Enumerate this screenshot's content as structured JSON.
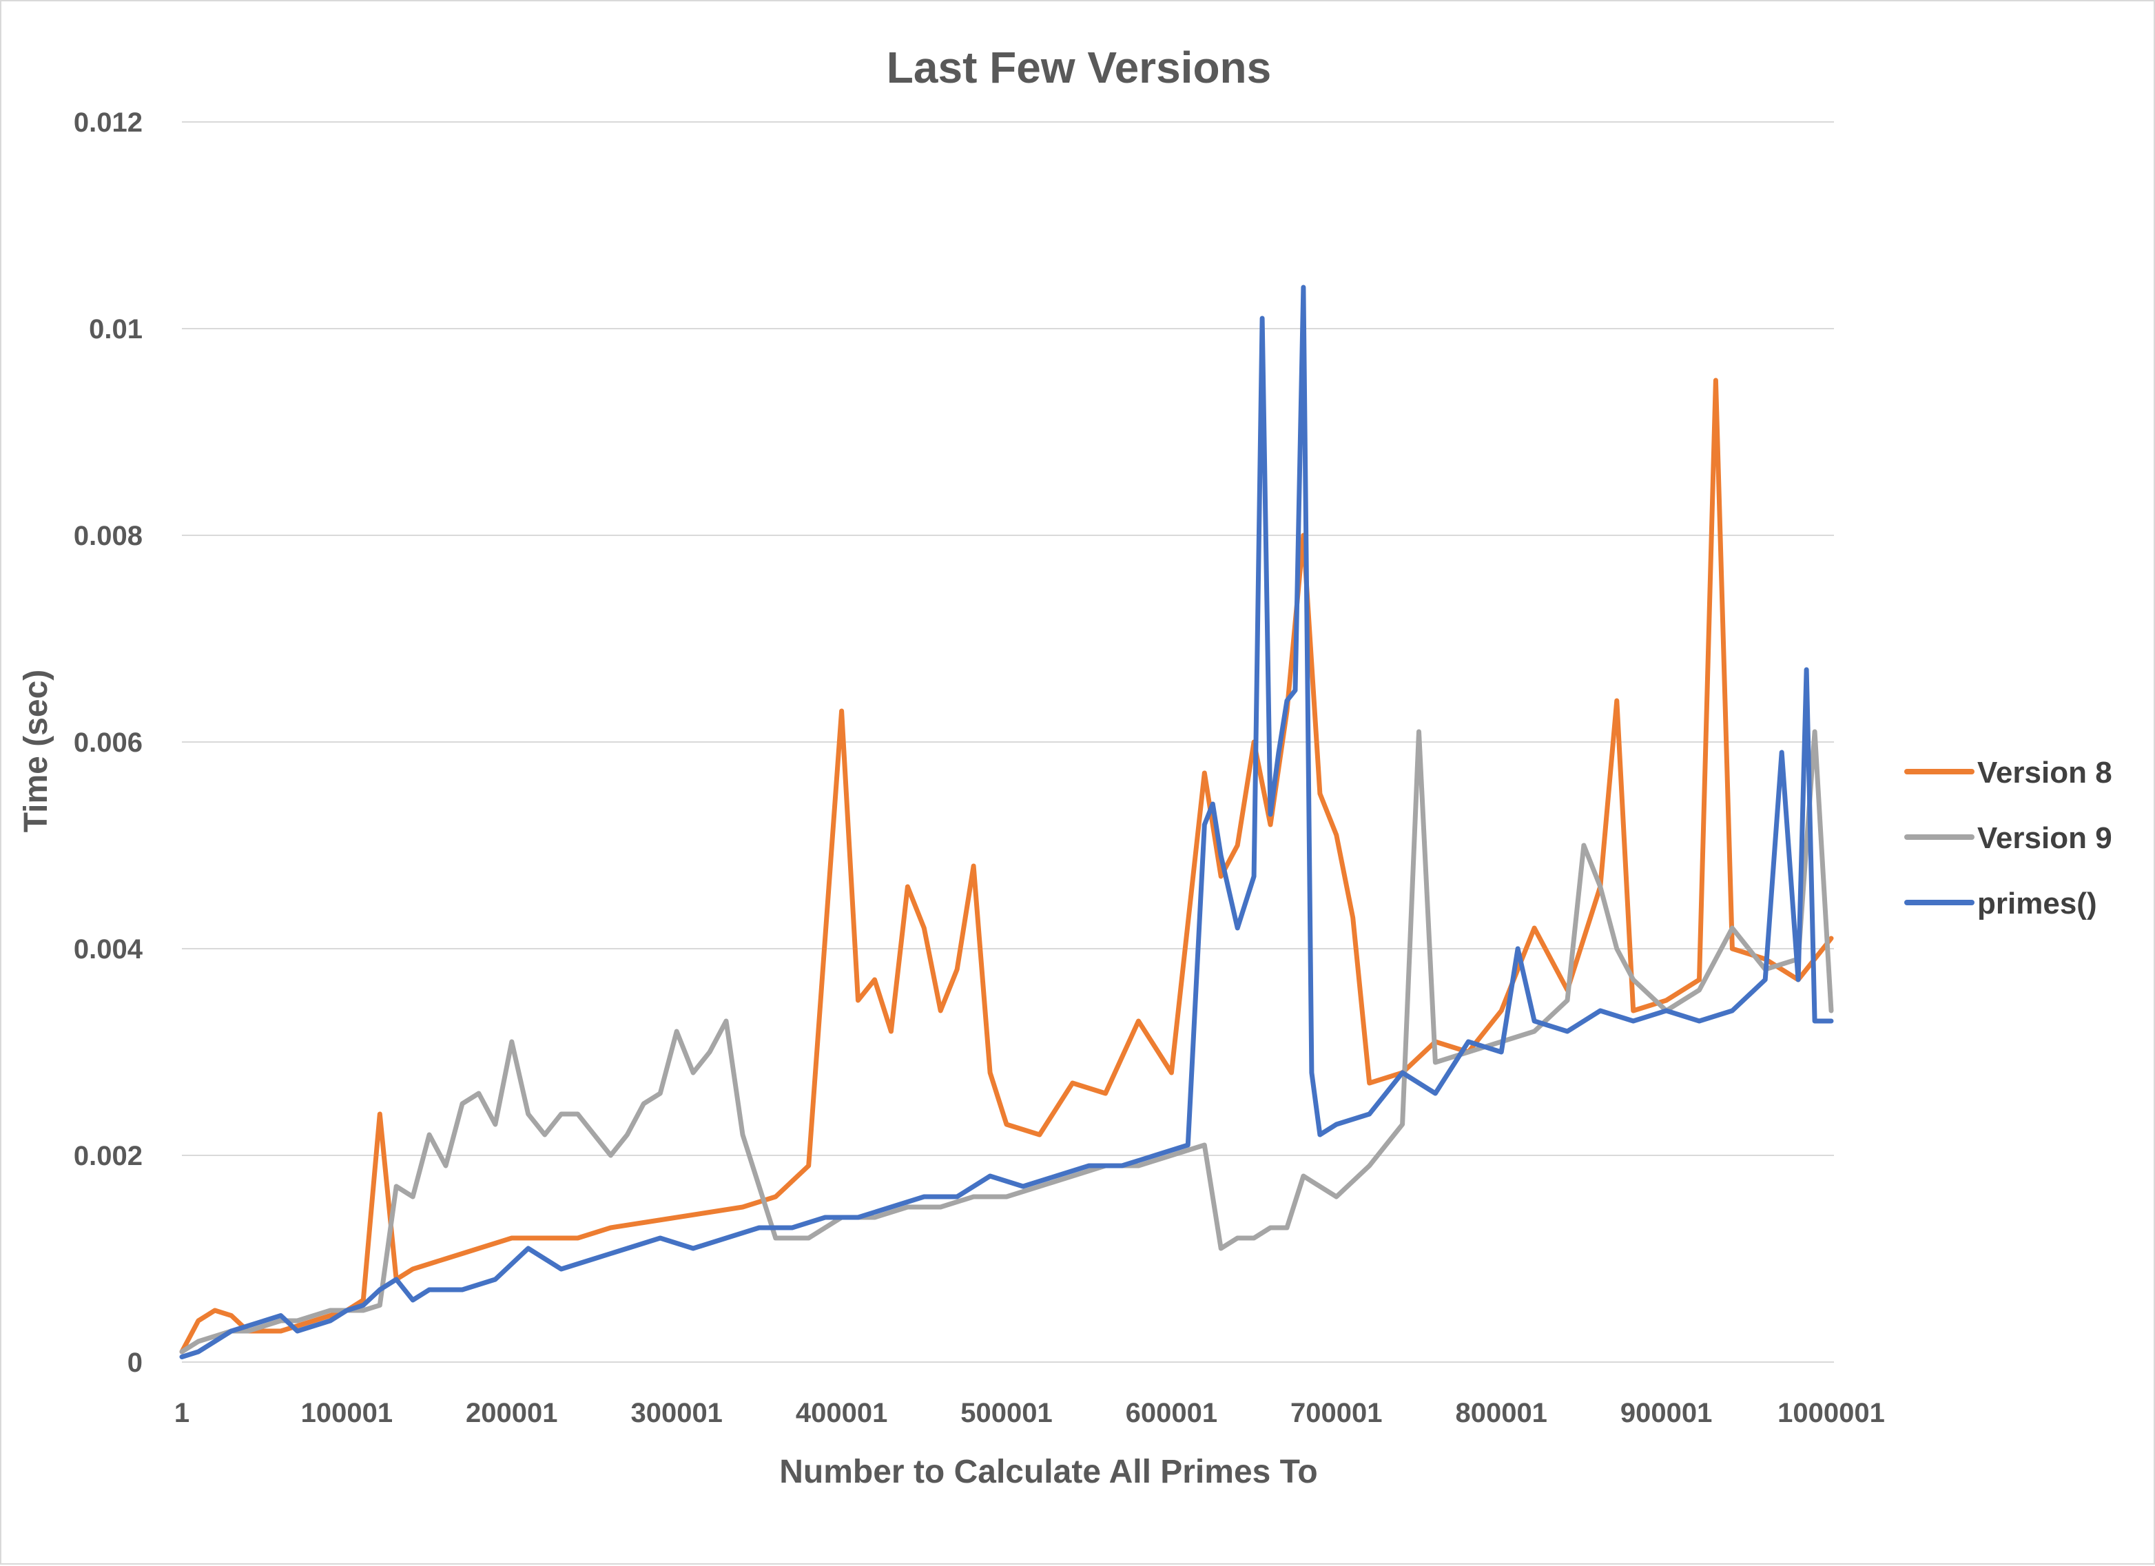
{
  "chart_data": {
    "type": "line",
    "title": "Last Few Versions",
    "xlabel": "Number to Calculate All Primes To",
    "ylabel": "Time (sec)",
    "xlim": [
      1,
      1000001
    ],
    "ylim": [
      0,
      0.012
    ],
    "x_ticks": [
      "1",
      "100001",
      "200001",
      "300001",
      "400001",
      "500001",
      "600001",
      "700001",
      "800001",
      "900001",
      "1000001"
    ],
    "y_ticks": [
      "0",
      "0.002",
      "0.004",
      "0.006",
      "0.008",
      "0.01",
      "0.012"
    ],
    "grid": "horizontal",
    "legend_position": "right",
    "series": [
      {
        "name": "Version 8",
        "color": "#ED7D31",
        "x": [
          1,
          10001,
          20001,
          30001,
          40001,
          50001,
          60001,
          70001,
          80001,
          90001,
          100001,
          110001,
          120001,
          130001,
          140001,
          150001,
          160001,
          170001,
          180001,
          190001,
          200001,
          220001,
          240001,
          260001,
          280001,
          300001,
          320001,
          340001,
          360001,
          380001,
          400001,
          410001,
          420001,
          430001,
          440001,
          450001,
          460001,
          470001,
          480001,
          490001,
          500001,
          520001,
          540001,
          560001,
          580001,
          600001,
          620001,
          630001,
          640001,
          650001,
          660001,
          670001,
          680001,
          690001,
          700001,
          710001,
          720001,
          740001,
          760001,
          780001,
          800001,
          820001,
          840001,
          860001,
          870001,
          880001,
          900001,
          920001,
          930001,
          940001,
          960001,
          980001,
          1000001
        ],
        "y": [
          0.0001,
          0.0004,
          0.0005,
          0.00045,
          0.0003,
          0.0003,
          0.0003,
          0.00035,
          0.0004,
          0.00045,
          0.0005,
          0.0006,
          0.0024,
          0.0008,
          0.0009,
          0.00095,
          0.001,
          0.00105,
          0.0011,
          0.00115,
          0.0012,
          0.0012,
          0.0012,
          0.0013,
          0.00135,
          0.0014,
          0.00145,
          0.0015,
          0.0016,
          0.0019,
          0.0063,
          0.0035,
          0.0037,
          0.0032,
          0.0046,
          0.0042,
          0.0034,
          0.0038,
          0.0048,
          0.0028,
          0.0023,
          0.0022,
          0.0027,
          0.0026,
          0.0033,
          0.0028,
          0.0057,
          0.0047,
          0.005,
          0.006,
          0.0052,
          0.0063,
          0.008,
          0.0055,
          0.0051,
          0.0043,
          0.0027,
          0.0028,
          0.0031,
          0.003,
          0.0034,
          0.0042,
          0.0036,
          0.0046,
          0.0064,
          0.0034,
          0.0035,
          0.0037,
          0.0095,
          0.004,
          0.0039,
          0.0037,
          0.0041
        ]
      },
      {
        "name": "Version 9",
        "color": "#A5A5A5",
        "x": [
          1,
          10001,
          20001,
          30001,
          40001,
          50001,
          60001,
          70001,
          80001,
          90001,
          100001,
          110001,
          120001,
          130001,
          140001,
          150001,
          160001,
          170001,
          180001,
          190001,
          200001,
          210001,
          220001,
          230001,
          240001,
          250001,
          260001,
          270001,
          280001,
          290001,
          300001,
          310001,
          320001,
          330001,
          340001,
          350001,
          360001,
          380001,
          400001,
          420001,
          440001,
          460001,
          480001,
          500001,
          520001,
          540001,
          560001,
          580001,
          600001,
          620001,
          630001,
          640001,
          650001,
          660001,
          670001,
          680001,
          700001,
          720001,
          740001,
          750001,
          760001,
          780001,
          800001,
          820001,
          840001,
          850001,
          860001,
          870001,
          880001,
          900001,
          920001,
          940001,
          960001,
          980001,
          990001,
          1000001
        ],
        "y": [
          0.0001,
          0.0002,
          0.00025,
          0.0003,
          0.0003,
          0.00035,
          0.0004,
          0.0004,
          0.00045,
          0.0005,
          0.0005,
          0.0005,
          0.00055,
          0.0017,
          0.0016,
          0.0022,
          0.0019,
          0.0025,
          0.0026,
          0.0023,
          0.0031,
          0.0024,
          0.0022,
          0.0024,
          0.0024,
          0.0022,
          0.002,
          0.0022,
          0.0025,
          0.0026,
          0.0032,
          0.0028,
          0.003,
          0.0033,
          0.0022,
          0.0017,
          0.0012,
          0.0012,
          0.0014,
          0.0014,
          0.0015,
          0.0015,
          0.0016,
          0.0016,
          0.0017,
          0.0018,
          0.0019,
          0.0019,
          0.002,
          0.0021,
          0.0011,
          0.0012,
          0.0012,
          0.0013,
          0.0013,
          0.0018,
          0.0016,
          0.0019,
          0.0023,
          0.0061,
          0.0029,
          0.003,
          0.0031,
          0.0032,
          0.0035,
          0.005,
          0.0046,
          0.004,
          0.0037,
          0.0034,
          0.0036,
          0.0042,
          0.0038,
          0.0039,
          0.0061,
          0.0034
        ]
      },
      {
        "name": "primes()",
        "color": "#4472C4",
        "x": [
          1,
          10001,
          20001,
          30001,
          40001,
          50001,
          60001,
          70001,
          80001,
          90001,
          100001,
          110001,
          120001,
          130001,
          140001,
          150001,
          170001,
          190001,
          210001,
          230001,
          250001,
          270001,
          290001,
          310001,
          330001,
          350001,
          370001,
          390001,
          410001,
          430001,
          450001,
          470001,
          490001,
          510001,
          530001,
          550001,
          570001,
          590001,
          610001,
          620001,
          625001,
          630001,
          640001,
          650001,
          655001,
          660001,
          665001,
          670001,
          675001,
          680001,
          685001,
          690001,
          700001,
          720001,
          740001,
          760001,
          780001,
          800001,
          810001,
          820001,
          840001,
          860001,
          880001,
          900001,
          920001,
          940001,
          960001,
          970001,
          980001,
          985001,
          990001,
          1000001
        ],
        "y": [
          5e-05,
          0.0001,
          0.0002,
          0.0003,
          0.00035,
          0.0004,
          0.00045,
          0.0003,
          0.00035,
          0.0004,
          0.0005,
          0.00055,
          0.0007,
          0.0008,
          0.0006,
          0.0007,
          0.0007,
          0.0008,
          0.0011,
          0.0009,
          0.001,
          0.0011,
          0.0012,
          0.0011,
          0.0012,
          0.0013,
          0.0013,
          0.0014,
          0.0014,
          0.0015,
          0.0016,
          0.0016,
          0.0018,
          0.0017,
          0.0018,
          0.0019,
          0.0019,
          0.002,
          0.0021,
          0.0052,
          0.0054,
          0.0049,
          0.0042,
          0.0047,
          0.0101,
          0.0053,
          0.0059,
          0.0064,
          0.0065,
          0.0104,
          0.0028,
          0.0022,
          0.0023,
          0.0024,
          0.0028,
          0.0026,
          0.0031,
          0.003,
          0.004,
          0.0033,
          0.0032,
          0.0034,
          0.0033,
          0.0034,
          0.0033,
          0.0034,
          0.0037,
          0.0059,
          0.0037,
          0.0067,
          0.0033,
          0.0033
        ]
      }
    ]
  }
}
